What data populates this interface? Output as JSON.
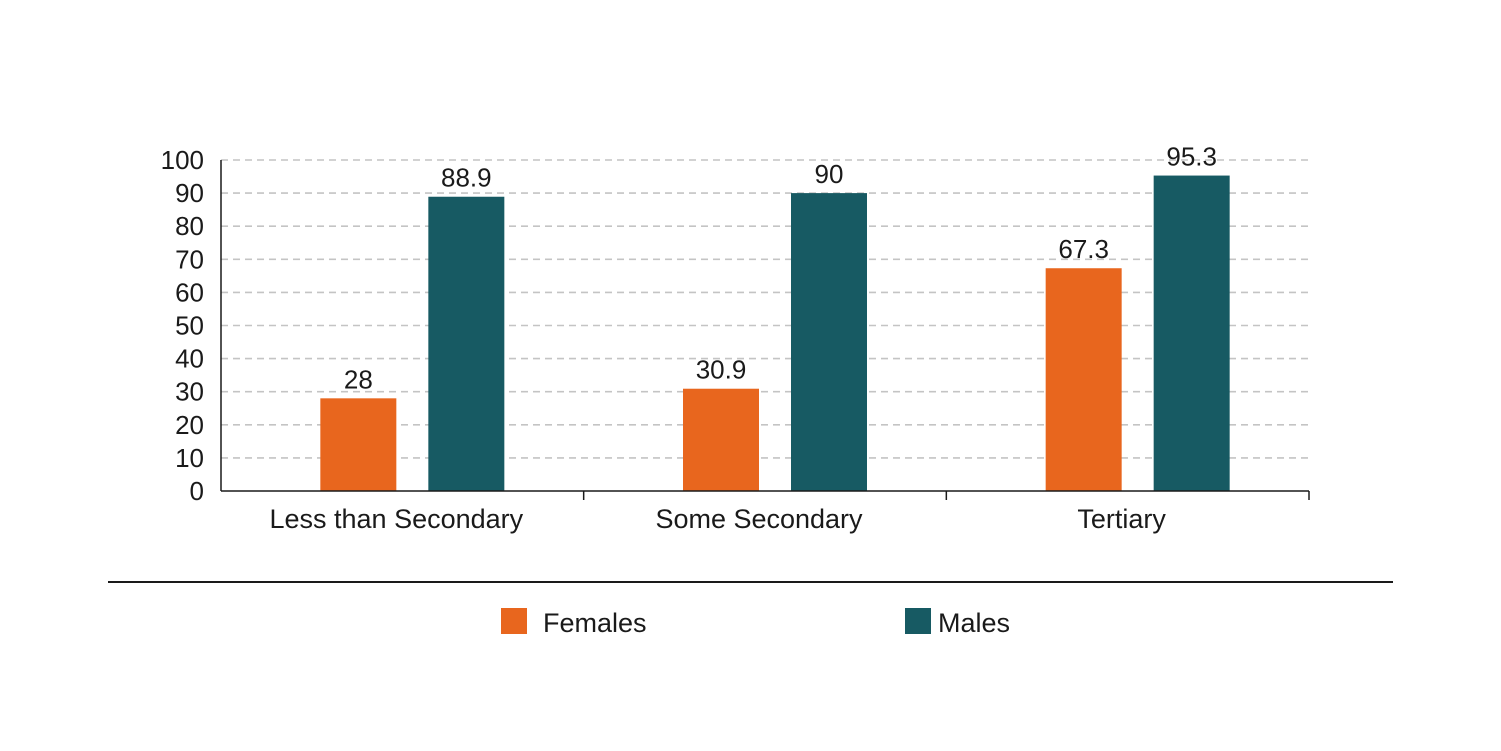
{
  "chart_data": {
    "type": "bar",
    "categories": [
      "Less than Secondary",
      "Some Secondary",
      "Tertiary"
    ],
    "series": [
      {
        "name": "Females",
        "values": [
          28,
          30.9,
          67.3
        ],
        "value_labels": [
          "28",
          "30.9",
          "67.3"
        ],
        "color": "#e8661e"
      },
      {
        "name": "Males",
        "values": [
          88.9,
          90,
          95.3
        ],
        "value_labels": [
          "88.9",
          "90",
          "95.3"
        ],
        "color": "#175a63"
      }
    ],
    "ylim": [
      0,
      100
    ],
    "yticks": [
      0,
      10,
      20,
      30,
      40,
      50,
      60,
      70,
      80,
      90,
      100
    ],
    "title": "",
    "xlabel": "",
    "ylabel": "",
    "grid": true,
    "grid_style": "dashed",
    "legend_position": "bottom"
  }
}
